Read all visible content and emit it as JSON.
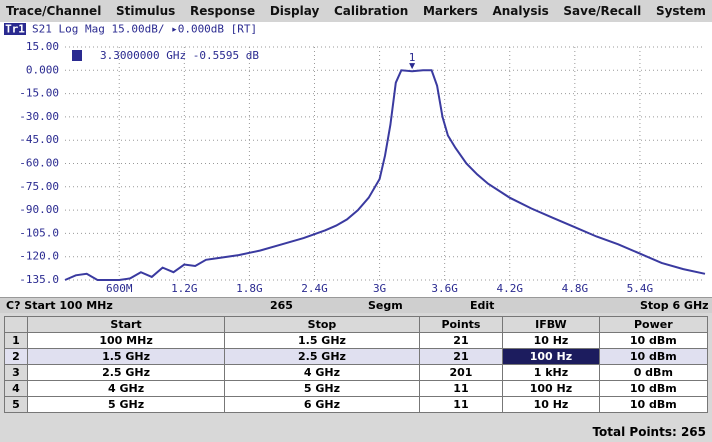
{
  "menu": [
    "Trace/Channel",
    "Stimulus",
    "Response",
    "Display",
    "Calibration",
    "Markers",
    "Analysis",
    "Save/Recall",
    "System"
  ],
  "trace_header": {
    "badge": "Tr1",
    "text": "S21 Log Mag 15.00dB/ ▸0.000dB [RT]"
  },
  "chart_data": {
    "type": "line",
    "x": [
      0.1,
      0.2,
      0.3,
      0.4,
      0.5,
      0.6,
      0.7,
      0.8,
      0.9,
      1.0,
      1.1,
      1.2,
      1.3,
      1.4,
      1.5,
      1.7,
      1.9,
      2.1,
      2.3,
      2.5,
      2.6,
      2.7,
      2.8,
      2.9,
      3.0,
      3.05,
      3.1,
      3.15,
      3.2,
      3.3,
      3.4,
      3.48,
      3.53,
      3.58,
      3.63,
      3.7,
      3.8,
      3.9,
      4.0,
      4.2,
      4.4,
      4.6,
      4.8,
      5.0,
      5.2,
      5.4,
      5.6,
      5.8,
      6.0
    ],
    "series": [
      {
        "name": "S21",
        "color": "#3a3aa0",
        "values": [
          -135,
          -132,
          -131,
          -135,
          -135,
          -135,
          -134,
          -130,
          -133,
          -127,
          -130,
          -125,
          -126,
          -122,
          -121,
          -119,
          -116,
          -112,
          -108,
          -103,
          -100,
          -96,
          -90,
          -82,
          -70,
          -55,
          -35,
          -8,
          0,
          -0.5595,
          0,
          0,
          -10,
          -30,
          -42,
          -50,
          -60,
          -67,
          -73,
          -82,
          -89,
          -95,
          -101,
          -107,
          -112,
          -118,
          -124,
          -128,
          -131
        ]
      }
    ],
    "xlim": [
      0.1,
      6
    ],
    "xticks": [
      {
        "value": 0.6,
        "label": "600M"
      },
      {
        "value": 1.2,
        "label": "1.2G"
      },
      {
        "value": 1.8,
        "label": "1.8G"
      },
      {
        "value": 2.4,
        "label": "2.4G"
      },
      {
        "value": 3.0,
        "label": "3G"
      },
      {
        "value": 3.6,
        "label": "3.6G"
      },
      {
        "value": 4.2,
        "label": "4.2G"
      },
      {
        "value": 4.8,
        "label": "4.8G"
      },
      {
        "value": 5.4,
        "label": "5.4G"
      }
    ],
    "ylim": [
      -135,
      15
    ],
    "yticks": [
      {
        "value": 15,
        "label": "15.00"
      },
      {
        "value": 0,
        "label": "0.000"
      },
      {
        "value": -15,
        "label": "-15.00"
      },
      {
        "value": -30,
        "label": "-30.00"
      },
      {
        "value": -45,
        "label": "-45.00"
      },
      {
        "value": -60,
        "label": "-60.00"
      },
      {
        "value": -75,
        "label": "-75.00"
      },
      {
        "value": -90,
        "label": "-90.00"
      },
      {
        "value": -105,
        "label": "-105.0"
      },
      {
        "value": -120,
        "label": "-120.0"
      },
      {
        "value": -135,
        "label": "-135.0"
      }
    ],
    "grid": true,
    "markers": [
      {
        "label": "1",
        "x": 3.3,
        "y": -0.5595,
        "readout": "3.3000000 GHz -0.5595 dB"
      }
    ]
  },
  "status_bar": [
    "C? Start 100 MHz",
    "265",
    "Segm",
    "Edit",
    "Stop 6 GHz"
  ],
  "table": {
    "columns": [
      "Start",
      "Stop",
      "Points",
      "IFBW",
      "Power"
    ],
    "rows": [
      [
        "1",
        "100 MHz",
        "1.5 GHz",
        "21",
        "10 Hz",
        "10 dBm"
      ],
      [
        "2",
        "1.5 GHz",
        "2.5 GHz",
        "21",
        "100 Hz",
        "10 dBm"
      ],
      [
        "3",
        "2.5 GHz",
        "4 GHz",
        "201",
        "1 kHz",
        "0 dBm"
      ],
      [
        "4",
        "4 GHz",
        "5 GHz",
        "11",
        "100 Hz",
        "10 dBm"
      ],
      [
        "5",
        "5 GHz",
        "6 GHz",
        "11",
        "10 Hz",
        "10 dBm"
      ]
    ]
  },
  "footer": "Total Points: 265"
}
